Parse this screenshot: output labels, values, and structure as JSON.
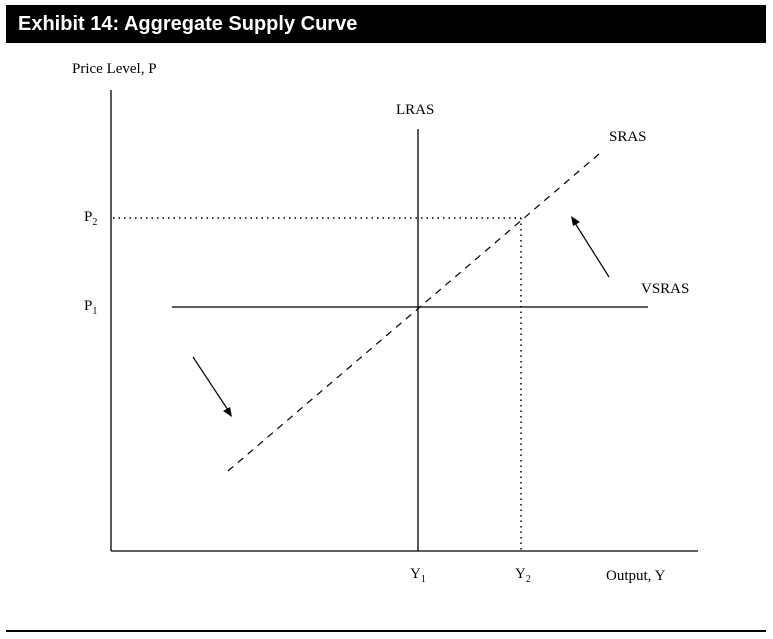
{
  "title": "Exhibit 14: Aggregate Supply Curve",
  "labels": {
    "y_axis": "Price Level, P",
    "x_axis": "Output, Y",
    "p2_main": "P",
    "p2_sub": "2",
    "p1_main": "P",
    "p1_sub": "1",
    "y1_main": "Y",
    "y1_sub": "1",
    "y2_main": "Y",
    "y2_sub": "2",
    "lras": "LRAS",
    "sras": "SRAS",
    "vsras": "VSRAS"
  },
  "colors": {
    "title_bg": "#000000",
    "title_text": "#ffffff",
    "ink": "#000000"
  }
}
